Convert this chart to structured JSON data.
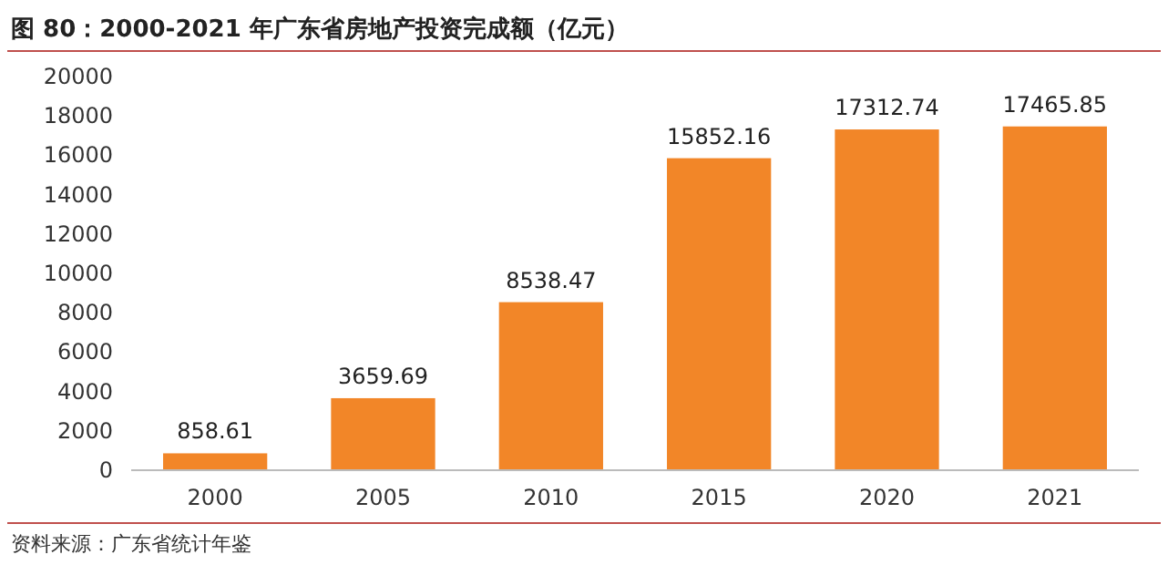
{
  "chart_data": {
    "type": "bar",
    "title": "图 80：2000-2021 年广东省房地产投资完成额（亿元）",
    "categories": [
      "2000",
      "2005",
      "2010",
      "2015",
      "2020",
      "2021"
    ],
    "values": [
      858.61,
      3659.69,
      8538.47,
      15852.16,
      17312.74,
      17465.85
    ],
    "color": "#f28628",
    "ylim": [
      0,
      20000
    ],
    "yticks": [
      0,
      2000,
      4000,
      6000,
      8000,
      10000,
      12000,
      14000,
      16000,
      18000,
      20000
    ],
    "data_labels": true,
    "annotations": [
      "资料来源：广东省统计年鉴"
    ]
  }
}
